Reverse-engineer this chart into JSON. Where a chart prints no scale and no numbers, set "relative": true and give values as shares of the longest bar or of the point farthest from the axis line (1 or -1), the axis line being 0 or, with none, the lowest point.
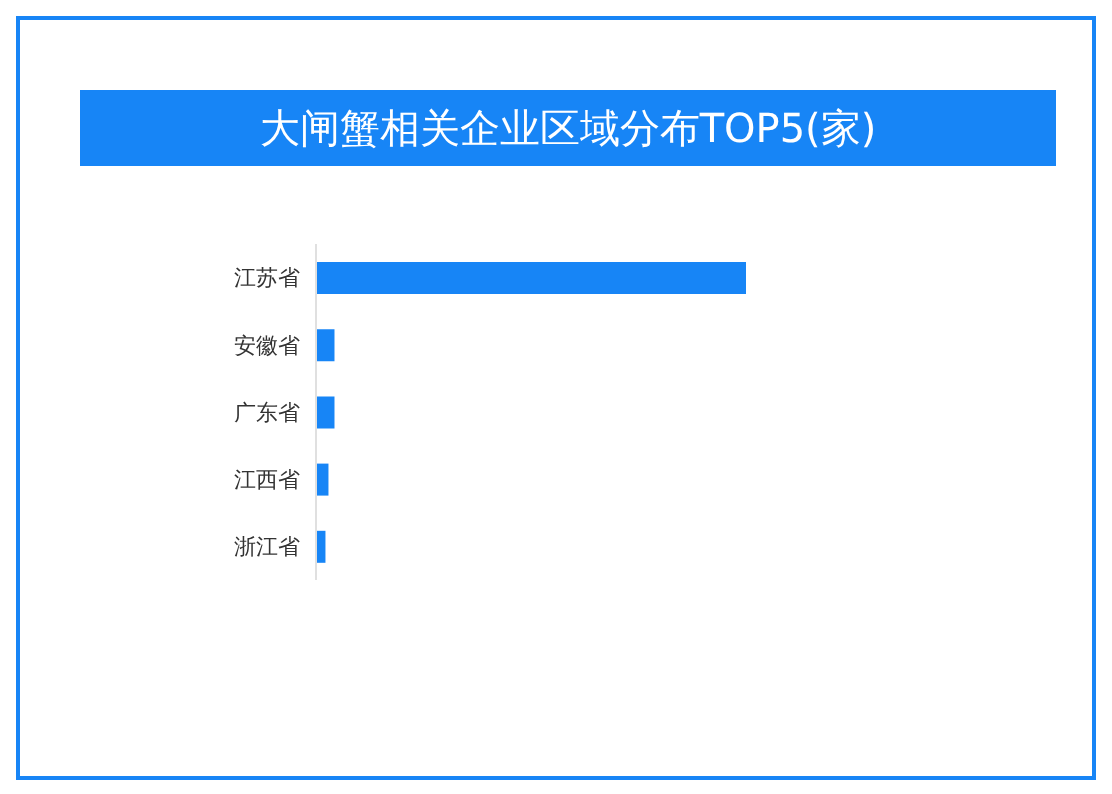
{
  "chart_data": {
    "type": "bar",
    "orientation": "horizontal",
    "relative": true,
    "title": "大闸蟹相关企业区域分布TOP5(家)",
    "categories": [
      "江苏省",
      "安徽省",
      "广东省",
      "江西省",
      "浙江省"
    ],
    "values": [
      1,
      0.043,
      0.043,
      0.029,
      0.022
    ],
    "color": "#1785f6"
  }
}
